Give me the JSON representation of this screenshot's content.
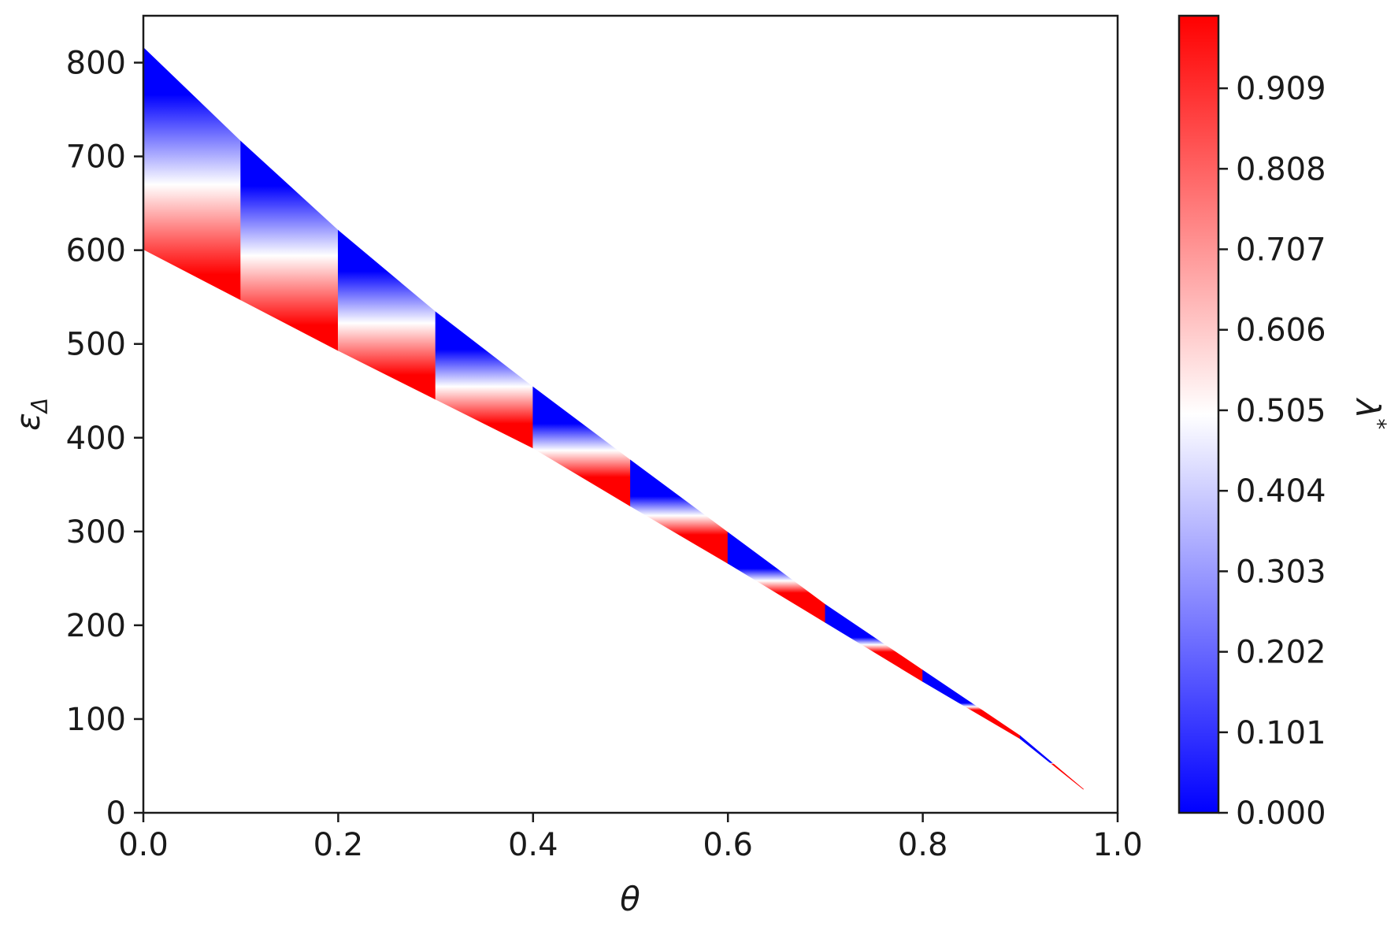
{
  "chart_data": {
    "type": "heatmap",
    "title": "",
    "xlabel": "θ",
    "ylabel_symbol": "ε",
    "ylabel_subscript": "Δ",
    "xlim": [
      0.0,
      1.0
    ],
    "ylim": [
      0,
      850
    ],
    "x_ticks": [
      "0.0",
      "0.2",
      "0.4",
      "0.6",
      "0.8",
      "1.0"
    ],
    "y_ticks": [
      "0",
      "100",
      "200",
      "300",
      "400",
      "500",
      "600",
      "700",
      "800"
    ],
    "grid": false,
    "region": {
      "theta": [
        0.0,
        0.1,
        0.2,
        0.3,
        0.4,
        0.5,
        0.6,
        0.7,
        0.8,
        0.9,
        0.965
      ],
      "eps_at_lambda_0": [
        816,
        716,
        621,
        534,
        454,
        376,
        299,
        222,
        152,
        82,
        25
      ],
      "eps_at_lambda_max": [
        601,
        547,
        493,
        441,
        389,
        327,
        266,
        203,
        140,
        79,
        25
      ]
    },
    "colorbar": {
      "label": "λ",
      "label_superscript": "*",
      "colormap": "bwr",
      "range": [
        0.0,
        1.0
      ],
      "ticks": [
        "0.000",
        "0.101",
        "0.202",
        "0.303",
        "0.404",
        "0.505",
        "0.606",
        "0.707",
        "0.808",
        "0.909"
      ],
      "tick_values": [
        0.0,
        0.101,
        0.202,
        0.303,
        0.404,
        0.505,
        0.606,
        0.707,
        0.808,
        0.909
      ],
      "low_color": "#0000ff",
      "mid_color": "#ffffff",
      "high_color": "#ff0000"
    }
  }
}
